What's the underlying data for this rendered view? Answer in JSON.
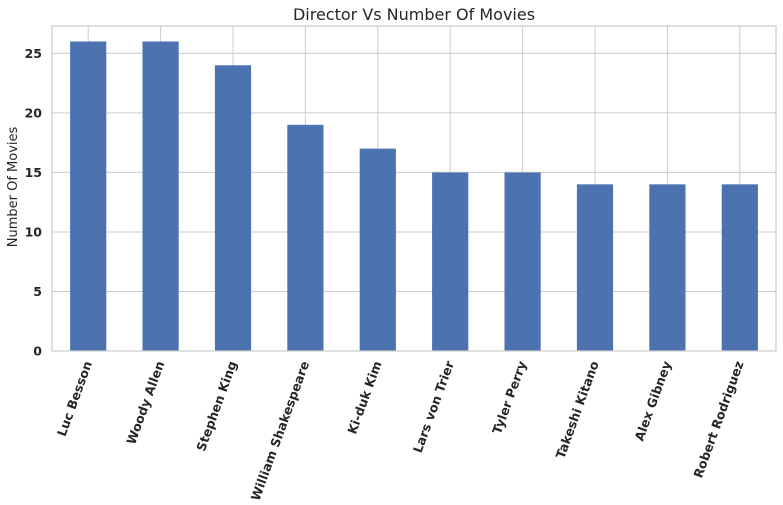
{
  "chart_data": {
    "type": "bar",
    "title": "Director Vs Number Of Movies",
    "xlabel": "",
    "ylabel": "Number Of Movies",
    "categories": [
      "Luc Besson",
      "Woody Allen",
      "Stephen King",
      "William Shakespeare",
      "Ki-duk Kim",
      "Lars von Trier",
      "Tyler Perry",
      "Takeshi Kitano",
      "Alex Gibney",
      "Robert Rodriguez"
    ],
    "values": [
      26,
      26,
      24,
      19,
      17,
      15,
      15,
      14,
      14,
      14
    ],
    "ylim": [
      0,
      27.3
    ],
    "yticks": [
      "0",
      "5",
      "10",
      "15",
      "20",
      "25"
    ],
    "grid": true,
    "bar_color": "#4c72b0",
    "grid_color": "#cccccc",
    "text_color": "#262626"
  }
}
